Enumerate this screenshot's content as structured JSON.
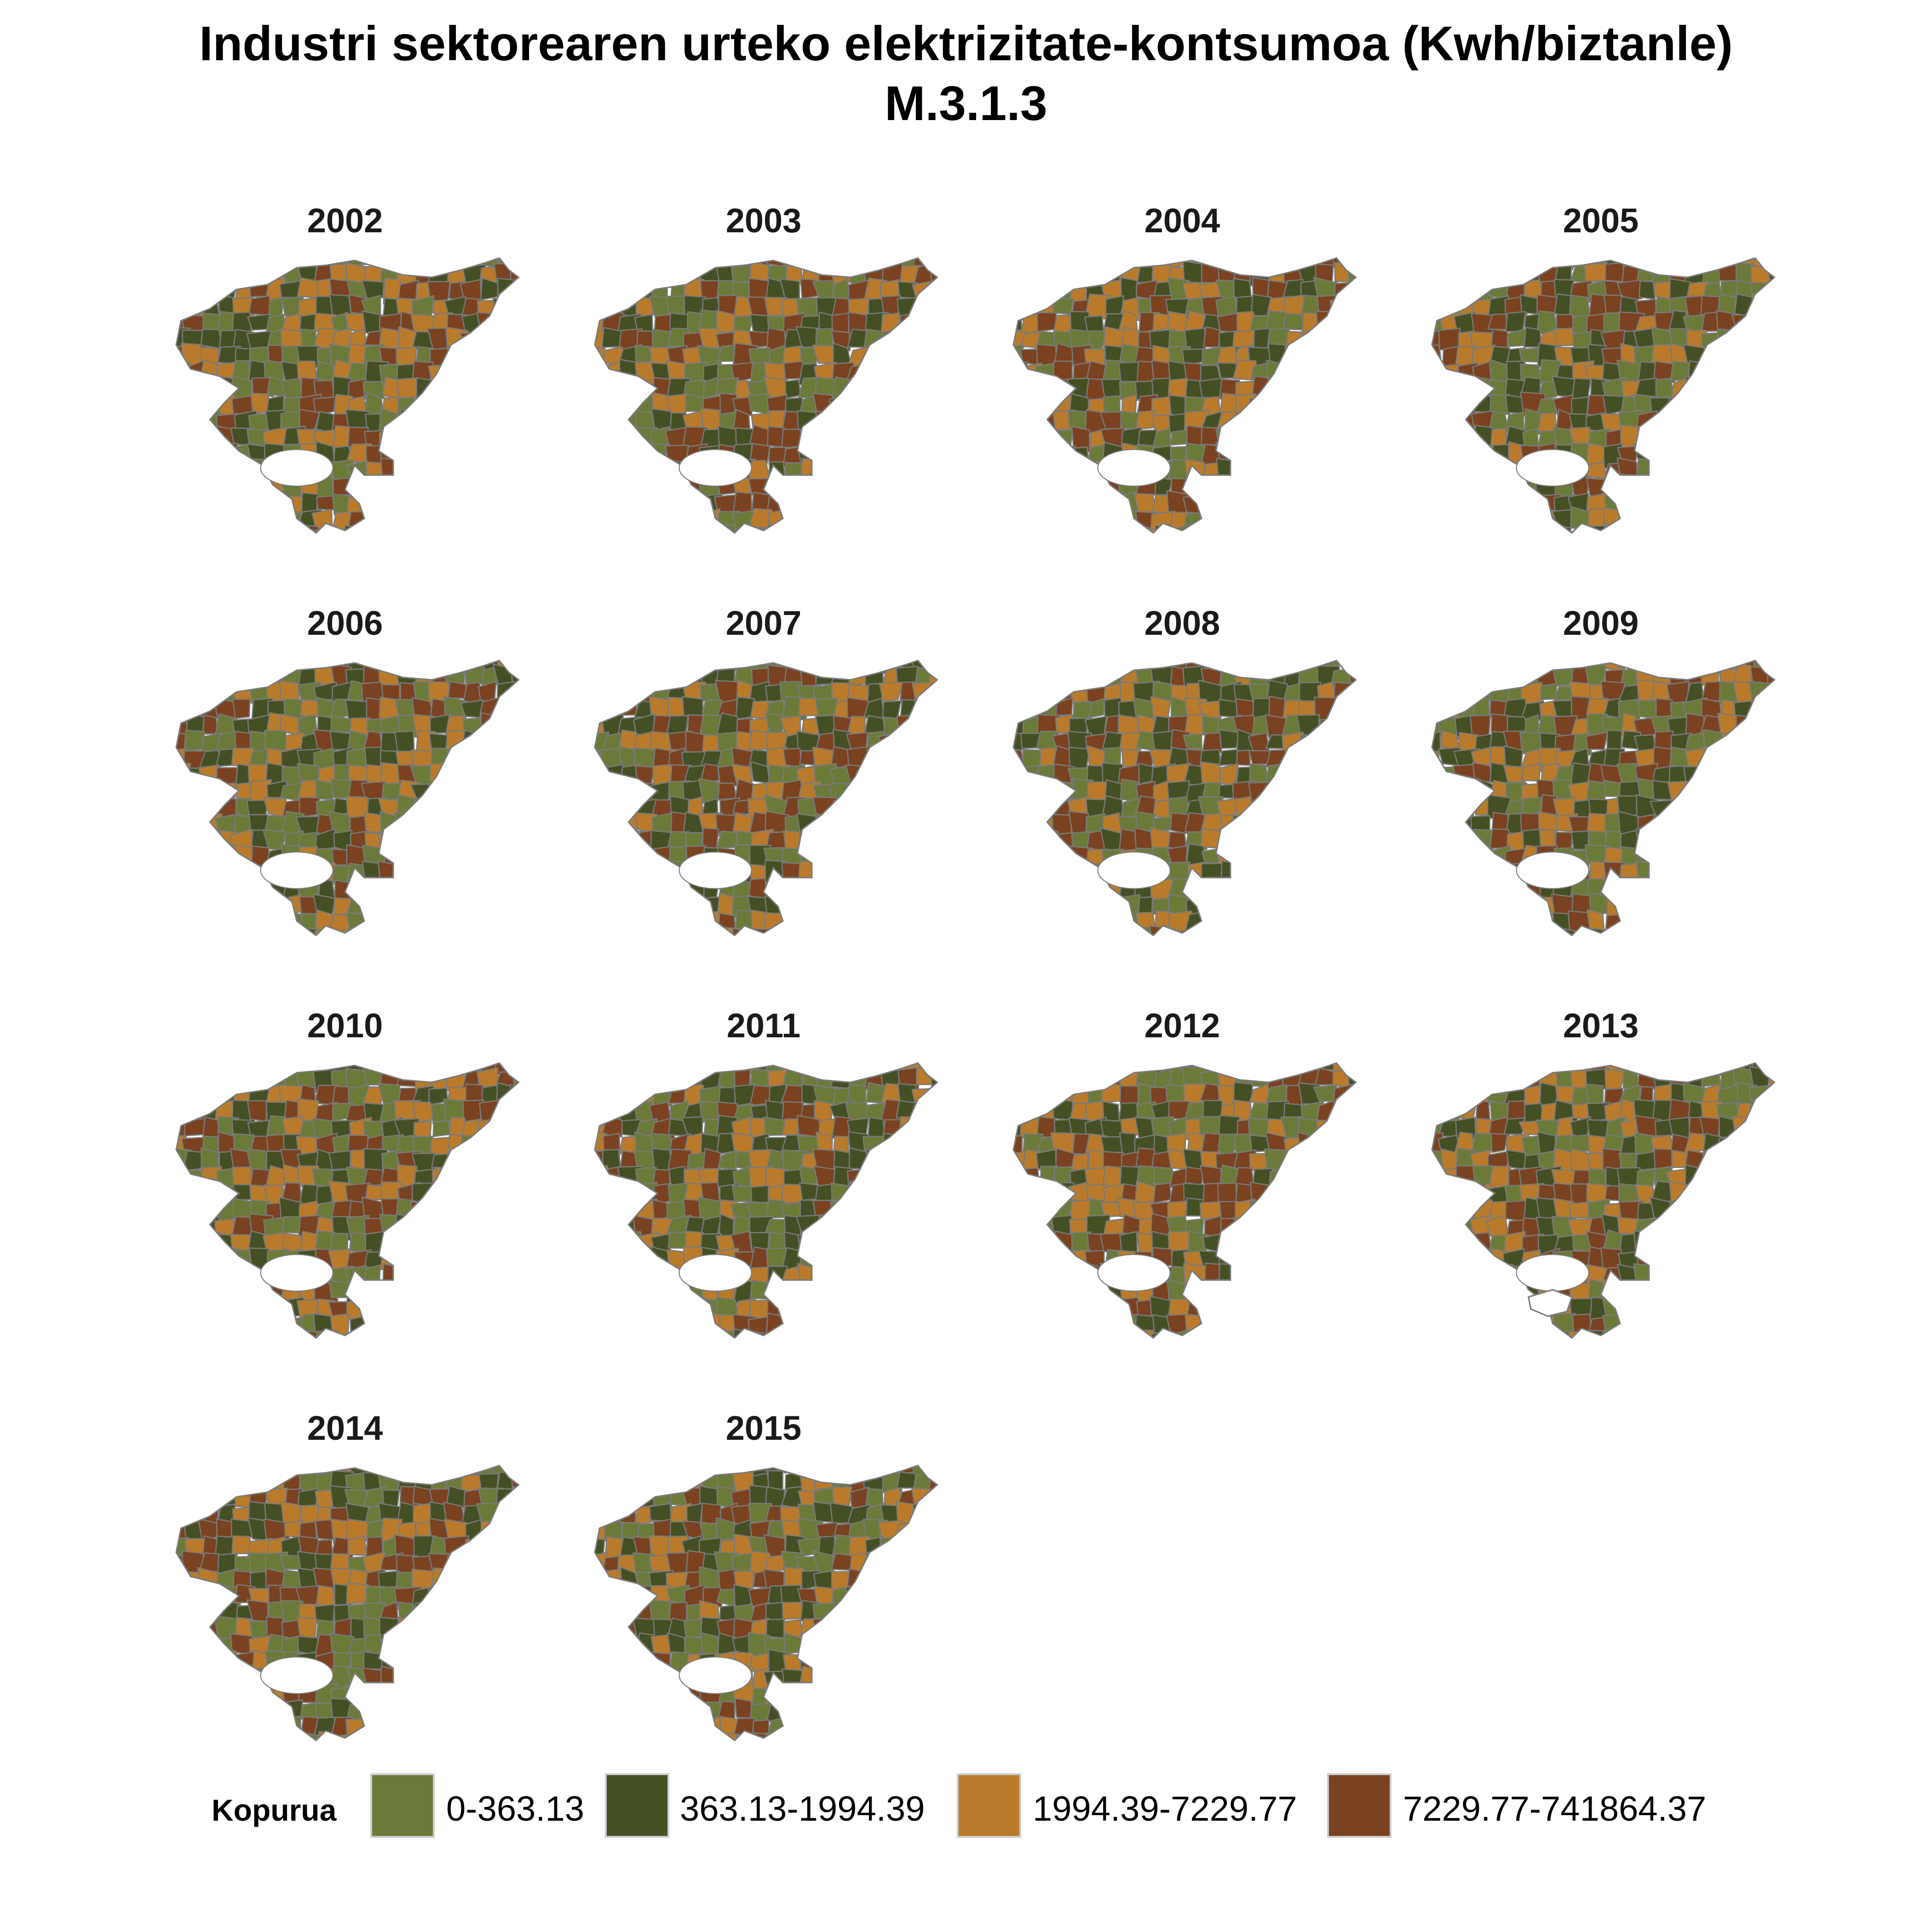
{
  "title": {
    "line1": "Industri sektorearen urteko elektrizitate-kontsumoa  (Kwh/biztanle)",
    "line2": "M.3.1.3"
  },
  "legend": {
    "title": "Kopurua",
    "classes": [
      {
        "label": "0-363.13",
        "color": "#6b7a38"
      },
      {
        "label": "363.13-1994.39",
        "color": "#454f24"
      },
      {
        "label": "1994.39-7229.77",
        "color": "#b97b2b"
      },
      {
        "label": "7229.77-741864.37",
        "color": "#7a4220"
      }
    ]
  },
  "no_data_color": "#ffffff",
  "panels": [
    {
      "year": "2002"
    },
    {
      "year": "2003"
    },
    {
      "year": "2004"
    },
    {
      "year": "2005"
    },
    {
      "year": "2006"
    },
    {
      "year": "2007"
    },
    {
      "year": "2008"
    },
    {
      "year": "2009"
    },
    {
      "year": "2010"
    },
    {
      "year": "2011"
    },
    {
      "year": "2012"
    },
    {
      "year": "2013",
      "has_no_data_area": true
    },
    {
      "year": "2014"
    },
    {
      "year": "2015"
    }
  ]
}
